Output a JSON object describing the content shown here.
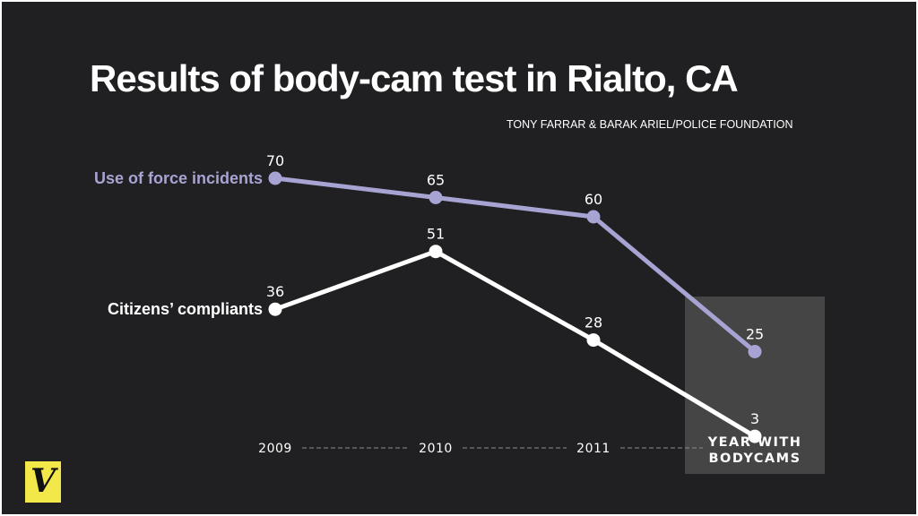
{
  "title": "Results of body-cam test in Rialto, CA",
  "source": "TONY FARRAR & BARAK ARIEL/POLICE FOUNDATION",
  "logo": {
    "letter": "V",
    "color": "#f2e84a"
  },
  "colors": {
    "background": "#201f21",
    "series_force": "#a7a4d3",
    "series_complaints": "#ffffff",
    "highlight_box": "#454545"
  },
  "chart_data": {
    "type": "line",
    "categories": [
      "2009",
      "2010",
      "2011",
      "YEAR WITH BODYCAMS"
    ],
    "highlight_category": "YEAR WITH BODYCAMS",
    "series": [
      {
        "name": "Use of force incidents",
        "values": [
          70,
          65,
          60,
          25
        ],
        "labels": [
          "70",
          "65",
          "60",
          "25"
        ],
        "color": "#a7a4d3"
      },
      {
        "name": "Citizens’ compliants",
        "values": [
          36,
          51,
          28,
          3
        ],
        "labels": [
          "36",
          "51",
          "28",
          "3"
        ],
        "color": "#ffffff"
      }
    ],
    "ylim": [
      0,
      80
    ],
    "grid": false,
    "legend": "inline-left"
  }
}
